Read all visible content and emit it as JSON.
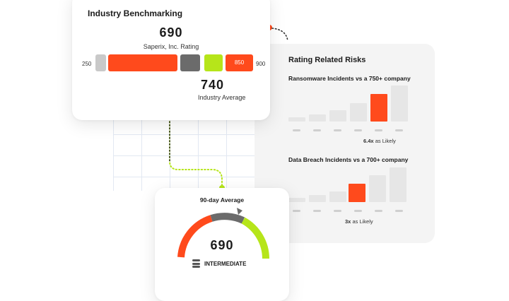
{
  "benchmark": {
    "title": "Industry Benchmarking",
    "company_score": "690",
    "company_label": "Saperix, Inc. Rating",
    "scale_min": "250",
    "scale_max": "900",
    "segment_label": "850",
    "industry_score": "740",
    "industry_label": "Industry Average"
  },
  "risks": {
    "title": "Rating Related Risks",
    "ransomware": {
      "title": "Ransomware Incidents vs a 750+ company",
      "multiplier": "6.4x",
      "suffix": "as Likely"
    },
    "breach": {
      "title": "Data Breach Incidents vs a 700+ company",
      "multiplier": "3x",
      "suffix": "as Likely"
    }
  },
  "gauge": {
    "title": "90-day Average",
    "score": "690",
    "level": "INTERMEDIATE"
  },
  "colors": {
    "accent_orange": "#ff4a1c",
    "lime": "#b6e51a",
    "gray_dark": "#6b6b6b",
    "gray_light": "#c9c9c9"
  }
}
